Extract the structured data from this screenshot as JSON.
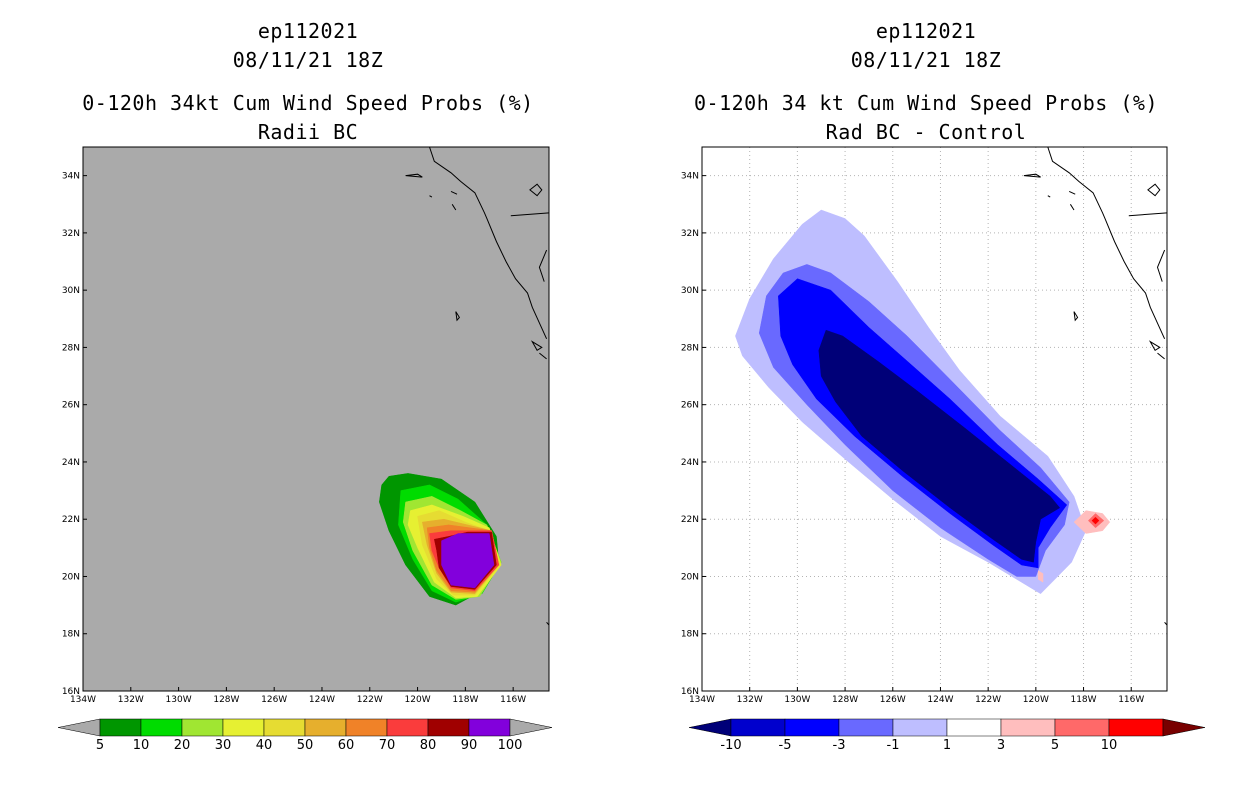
{
  "chart_data": [
    {
      "type": "filled-contour-map",
      "title": [
        "ep112021",
        "08/11/21 18Z",
        "0-120h 34kt Cum Wind Speed Probs (%)",
        "Radii BC"
      ],
      "x_ticks": [
        "134W",
        "132W",
        "130W",
        "128W",
        "126W",
        "124W",
        "122W",
        "120W",
        "118W",
        "116W"
      ],
      "x_values": [
        -134,
        -132,
        -130,
        -128,
        -126,
        -124,
        -122,
        -120,
        -118,
        -116
      ],
      "y_ticks": [
        "16N",
        "18N",
        "20N",
        "22N",
        "24N",
        "26N",
        "28N",
        "30N",
        "32N",
        "34N"
      ],
      "y_values": [
        16,
        18,
        20,
        22,
        24,
        26,
        28,
        30,
        32,
        34
      ],
      "xlim": [
        -134,
        -114.5
      ],
      "ylim": [
        16,
        35
      ],
      "grid": false,
      "background": "#aaaaaa",
      "colorbar_labels": [
        "5",
        "10",
        "20",
        "30",
        "40",
        "50",
        "60",
        "70",
        "80",
        "90",
        "100"
      ],
      "colorbar_colors": [
        "#009600",
        "#00dc00",
        "#a0e632",
        "#e6f032",
        "#e6dc32",
        "#e6af2d",
        "#f08228",
        "#fa3c3c",
        "#a00000",
        "#8200dc"
      ],
      "colorbar_under": "#aaaaaa",
      "colorbar_over": "#aaaaaa",
      "contours": [
        {
          "level": 5,
          "color": "#009600",
          "lonlat": [
            [
              -121.2,
              23.5
            ],
            [
              -120.4,
              23.6
            ],
            [
              -119,
              23.4
            ],
            [
              -117.6,
              22.6
            ],
            [
              -116.7,
              21.4
            ],
            [
              -116.6,
              20.5
            ],
            [
              -117.3,
              19.5
            ],
            [
              -118.4,
              19.0
            ],
            [
              -119.5,
              19.3
            ],
            [
              -120.5,
              20.4
            ],
            [
              -121.2,
              21.6
            ],
            [
              -121.6,
              22.6
            ],
            [
              -121.5,
              23.2
            ]
          ]
        },
        {
          "level": 10,
          "color": "#00dc00",
          "lonlat": [
            [
              -120.7,
              23.0
            ],
            [
              -119.5,
              23.2
            ],
            [
              -118.3,
              22.7
            ],
            [
              -117.1,
              21.8
            ],
            [
              -116.5,
              20.5
            ],
            [
              -117.3,
              19.4
            ],
            [
              -118.4,
              19.1
            ],
            [
              -119.4,
              19.5
            ],
            [
              -120.2,
              20.6
            ],
            [
              -120.8,
              21.8
            ]
          ]
        },
        {
          "level": 20,
          "color": "#a0e632",
          "lonlat": [
            [
              -120.5,
              22.6
            ],
            [
              -119.4,
              22.8
            ],
            [
              -118.2,
              22.3
            ],
            [
              -117.1,
              21.8
            ],
            [
              -116.5,
              20.5
            ],
            [
              -117.4,
              19.3
            ],
            [
              -118.4,
              19.2
            ],
            [
              -119.4,
              19.7
            ],
            [
              -120.2,
              20.9
            ],
            [
              -120.6,
              21.9
            ]
          ]
        },
        {
          "level": 30,
          "color": "#e6f032",
          "lonlat": [
            [
              -120.3,
              22.3
            ],
            [
              -119.4,
              22.5
            ],
            [
              -118.1,
              22.1
            ],
            [
              -117.0,
              21.7
            ],
            [
              -116.5,
              20.4
            ],
            [
              -117.5,
              19.3
            ],
            [
              -118.4,
              19.25
            ],
            [
              -119.3,
              19.8
            ],
            [
              -120.0,
              21.0
            ],
            [
              -120.4,
              21.8
            ]
          ]
        },
        {
          "level": 40,
          "color": "#e6dc32",
          "lonlat": [
            [
              -120.0,
              22.1
            ],
            [
              -119.1,
              22.3
            ],
            [
              -118.0,
              21.9
            ],
            [
              -117.0,
              21.6
            ],
            [
              -116.55,
              20.4
            ],
            [
              -117.6,
              19.35
            ],
            [
              -118.5,
              19.35
            ],
            [
              -119.2,
              19.9
            ],
            [
              -119.8,
              21.1
            ]
          ]
        },
        {
          "level": 50,
          "color": "#e6af2d",
          "lonlat": [
            [
              -119.8,
              21.9
            ],
            [
              -118.9,
              22.0
            ],
            [
              -117.9,
              21.8
            ],
            [
              -116.9,
              21.6
            ],
            [
              -116.6,
              20.4
            ],
            [
              -117.6,
              19.4
            ],
            [
              -118.6,
              19.45
            ],
            [
              -119.2,
              20.1
            ],
            [
              -119.6,
              21.1
            ]
          ]
        },
        {
          "level": 60,
          "color": "#f08228",
          "lonlat": [
            [
              -119.6,
              21.7
            ],
            [
              -118.7,
              21.8
            ],
            [
              -117.8,
              21.7
            ],
            [
              -116.9,
              21.6
            ],
            [
              -116.6,
              20.4
            ],
            [
              -117.6,
              19.45
            ],
            [
              -118.6,
              19.5
            ],
            [
              -119.2,
              20.2
            ],
            [
              -119.5,
              21.0
            ]
          ]
        },
        {
          "level": 70,
          "color": "#fa3c3c",
          "lonlat": [
            [
              -119.5,
              21.5
            ],
            [
              -118.6,
              21.6
            ],
            [
              -117.7,
              21.6
            ],
            [
              -116.9,
              21.6
            ],
            [
              -116.6,
              20.4
            ],
            [
              -117.6,
              19.5
            ],
            [
              -118.6,
              19.6
            ],
            [
              -119.1,
              20.3
            ],
            [
              -119.4,
              20.9
            ]
          ]
        },
        {
          "level": 80,
          "color": "#a00000",
          "lonlat": [
            [
              -119.3,
              21.3
            ],
            [
              -118.7,
              21.4
            ],
            [
              -117.9,
              21.55
            ],
            [
              -116.9,
              21.55
            ],
            [
              -116.7,
              20.4
            ],
            [
              -117.6,
              19.55
            ],
            [
              -118.6,
              19.65
            ],
            [
              -119.1,
              20.3
            ],
            [
              -119.2,
              20.9
            ]
          ]
        },
        {
          "level": 90,
          "color": "#8200dc",
          "lonlat": [
            [
              -119.0,
              21.25
            ],
            [
              -118.3,
              21.5
            ],
            [
              -117.0,
              21.5
            ],
            [
              -116.8,
              20.4
            ],
            [
              -117.6,
              19.6
            ],
            [
              -118.6,
              19.7
            ],
            [
              -119.0,
              20.4
            ]
          ]
        }
      ]
    },
    {
      "type": "filled-contour-map",
      "title": [
        "ep112021",
        "08/11/21 18Z",
        "0-120h 34 kt Cum Wind Speed Probs (%)",
        "Rad BC - Control"
      ],
      "x_ticks": [
        "134W",
        "132W",
        "130W",
        "128W",
        "126W",
        "124W",
        "122W",
        "120W",
        "118W",
        "116W"
      ],
      "x_values": [
        -134,
        -132,
        -130,
        -128,
        -126,
        -124,
        -122,
        -120,
        -118,
        -116
      ],
      "y_ticks": [
        "16N",
        "18N",
        "20N",
        "22N",
        "24N",
        "26N",
        "28N",
        "30N",
        "32N",
        "34N"
      ],
      "y_values": [
        16,
        18,
        20,
        22,
        24,
        26,
        28,
        30,
        32,
        34
      ],
      "xlim": [
        -134,
        -114.5
      ],
      "ylim": [
        16,
        35
      ],
      "grid": true,
      "background": "#ffffff",
      "colorbar_labels": [
        "-10",
        "-5",
        "-3",
        "-1",
        "1",
        "3",
        "5",
        "10"
      ],
      "colorbar_colors": [
        "#0000cd",
        "#0000ff",
        "#6969ff",
        "#bebeff",
        "#ffffff",
        "#ffbebe",
        "#ff6969",
        "#ff0000"
      ],
      "colorbar_under": "#000078",
      "colorbar_over": "#780000",
      "contours": [
        {
          "level": -1,
          "color": "#bebeff",
          "lonlat": [
            [
              -132.6,
              28.4
            ],
            [
              -132.0,
              29.7
            ],
            [
              -131.0,
              31.1
            ],
            [
              -129.8,
              32.3
            ],
            [
              -129.0,
              32.8
            ],
            [
              -128.0,
              32.5
            ],
            [
              -127.2,
              31.9
            ],
            [
              -125.8,
              30.3
            ],
            [
              -124.5,
              28.7
            ],
            [
              -123.2,
              27.2
            ],
            [
              -121.5,
              25.6
            ],
            [
              -119.5,
              24.2
            ],
            [
              -118.4,
              22.8
            ],
            [
              -117.9,
              21.6
            ],
            [
              -118.5,
              20.5
            ],
            [
              -119.2,
              19.9
            ],
            [
              -119.8,
              19.4
            ],
            [
              -120.6,
              19.8
            ],
            [
              -122.0,
              20.5
            ],
            [
              -124.0,
              21.4
            ],
            [
              -126.0,
              22.7
            ],
            [
              -128.0,
              24.1
            ],
            [
              -129.8,
              25.4
            ],
            [
              -131.2,
              26.6
            ],
            [
              -132.3,
              27.7
            ]
          ]
        },
        {
          "level": -3,
          "color": "#6969ff",
          "lonlat": [
            [
              -131.6,
              28.5
            ],
            [
              -131.3,
              29.8
            ],
            [
              -130.6,
              30.6
            ],
            [
              -129.6,
              30.9
            ],
            [
              -128.6,
              30.6
            ],
            [
              -127.0,
              29.6
            ],
            [
              -125.4,
              28.4
            ],
            [
              -123.5,
              26.8
            ],
            [
              -121.5,
              25.1
            ],
            [
              -119.8,
              23.8
            ],
            [
              -118.6,
              22.6
            ],
            [
              -118.8,
              21.8
            ],
            [
              -119.6,
              20.9
            ],
            [
              -120.0,
              20.0
            ],
            [
              -120.8,
              20.0
            ],
            [
              -122.0,
              20.6
            ],
            [
              -124.0,
              21.7
            ],
            [
              -126.0,
              23.0
            ],
            [
              -128.0,
              24.6
            ],
            [
              -129.6,
              26.0
            ],
            [
              -131.0,
              27.3
            ]
          ]
        },
        {
          "level": -5,
          "color": "#0000ff",
          "lonlat": [
            [
              -130.7,
              28.4
            ],
            [
              -130.8,
              29.8
            ],
            [
              -130.0,
              30.4
            ],
            [
              -128.6,
              30.0
            ],
            [
              -127.0,
              28.7
            ],
            [
              -125.5,
              27.6
            ],
            [
              -123.6,
              26.2
            ],
            [
              -121.6,
              24.6
            ],
            [
              -119.9,
              23.4
            ],
            [
              -118.7,
              22.5
            ],
            [
              -119.4,
              21.7
            ],
            [
              -119.9,
              21.0
            ],
            [
              -119.9,
              20.3
            ],
            [
              -120.6,
              20.4
            ],
            [
              -121.8,
              21.1
            ],
            [
              -123.6,
              22.2
            ],
            [
              -125.6,
              23.5
            ],
            [
              -127.6,
              24.9
            ],
            [
              -129.2,
              26.2
            ],
            [
              -130.2,
              27.4
            ]
          ]
        },
        {
          "level": -10,
          "color": "#000078",
          "lonlat": [
            [
              -129.1,
              27.9
            ],
            [
              -128.8,
              28.6
            ],
            [
              -128.1,
              28.4
            ],
            [
              -126.6,
              27.5
            ],
            [
              -125.0,
              26.5
            ],
            [
              -123.0,
              25.2
            ],
            [
              -121.2,
              24.0
            ],
            [
              -119.4,
              22.8
            ],
            [
              -119.0,
              22.4
            ],
            [
              -119.8,
              22.0
            ],
            [
              -120.0,
              21.2
            ],
            [
              -120.1,
              20.5
            ],
            [
              -120.6,
              20.6
            ],
            [
              -121.8,
              21.3
            ],
            [
              -123.6,
              22.4
            ],
            [
              -125.6,
              23.7
            ],
            [
              -127.3,
              24.9
            ],
            [
              -128.4,
              26.1
            ],
            [
              -129.0,
              27.0
            ]
          ]
        },
        {
          "level": 1,
          "color": "#ffbebe",
          "lonlat": [
            [
              -118.4,
              21.9
            ],
            [
              -117.9,
              22.3
            ],
            [
              -117.2,
              22.2
            ],
            [
              -116.9,
              21.9
            ],
            [
              -117.2,
              21.6
            ],
            [
              -117.9,
              21.5
            ]
          ]
        },
        {
          "level": 3,
          "color": "#ff6969",
          "lonlat": [
            [
              -117.8,
              21.95
            ],
            [
              -117.5,
              22.2
            ],
            [
              -117.15,
              21.95
            ],
            [
              -117.5,
              21.7
            ]
          ]
        },
        {
          "level": 5,
          "color": "#ff0000",
          "lonlat": [
            [
              -117.65,
              21.95
            ],
            [
              -117.5,
              22.07
            ],
            [
              -117.35,
              21.95
            ],
            [
              -117.5,
              21.83
            ]
          ]
        },
        {
          "level": 1,
          "color": "#ffbebe",
          "lonlat": [
            [
              -119.9,
              20.2
            ],
            [
              -119.7,
              20.1
            ],
            [
              -119.7,
              19.8
            ],
            [
              -119.9,
              19.9
            ]
          ]
        }
      ]
    }
  ]
}
